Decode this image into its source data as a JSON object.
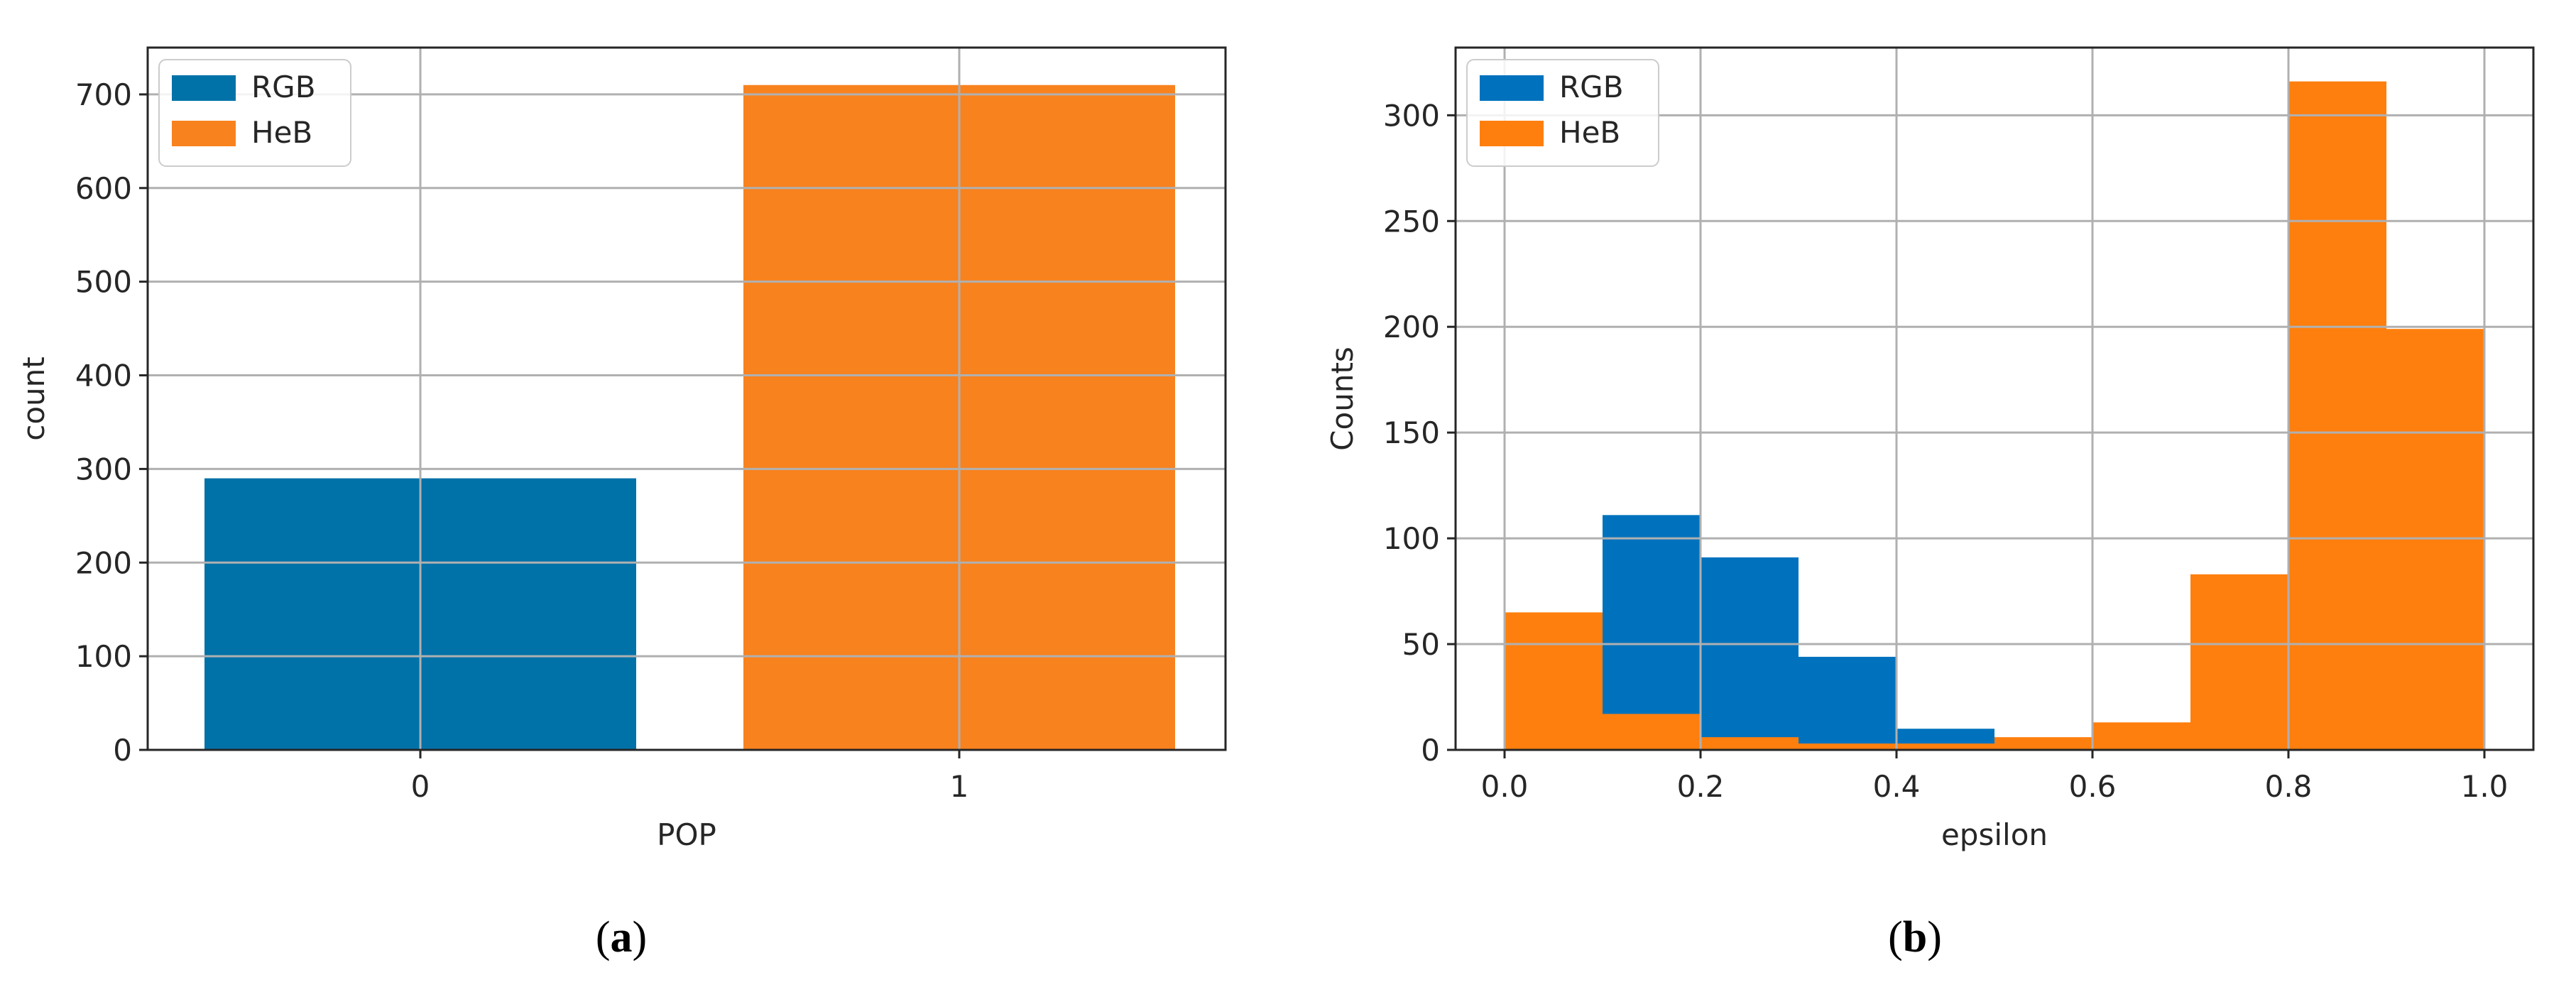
{
  "captions": [
    {
      "open": "(",
      "letter": "a",
      "close": ")"
    },
    {
      "open": "(",
      "letter": "b",
      "close": ")"
    }
  ],
  "chart_data": [
    {
      "type": "bar",
      "xlabel": "POP",
      "ylabel": "count",
      "categories": [
        "0",
        "1"
      ],
      "ylim": [
        0,
        750
      ],
      "yticks": [
        0,
        100,
        200,
        300,
        400,
        500,
        600,
        700
      ],
      "grid": true,
      "legend_position": "top-left",
      "series": [
        {
          "name": "RGB",
          "color": "#0072a8",
          "values": [
            290,
            null
          ]
        },
        {
          "name": "HeB",
          "color": "#f8821e",
          "values": [
            null,
            710
          ]
        }
      ]
    },
    {
      "type": "bar",
      "subtype": "histogram",
      "xlabel": "epsilon",
      "ylabel": "Counts",
      "xlim": [
        -0.05,
        1.05
      ],
      "ylim": [
        0,
        332
      ],
      "xticks": [
        "0.0",
        "0.2",
        "0.4",
        "0.6",
        "0.8",
        "1.0"
      ],
      "yticks": [
        0,
        50,
        100,
        150,
        200,
        250,
        300
      ],
      "grid": true,
      "legend_position": "top-left",
      "bin_edges": [
        0.0,
        0.1,
        0.2,
        0.3,
        0.4,
        0.5,
        0.6,
        0.7,
        0.8,
        0.9,
        1.0
      ],
      "series": [
        {
          "name": "RGB",
          "color": "#0072bd",
          "values": [
            0,
            111,
            91,
            44,
            10,
            0,
            0,
            0,
            0,
            0
          ]
        },
        {
          "name": "HeB",
          "color": "#ff7f0e",
          "values": [
            65,
            17,
            6,
            3,
            3,
            6,
            13,
            83,
            316,
            199
          ]
        }
      ]
    }
  ]
}
